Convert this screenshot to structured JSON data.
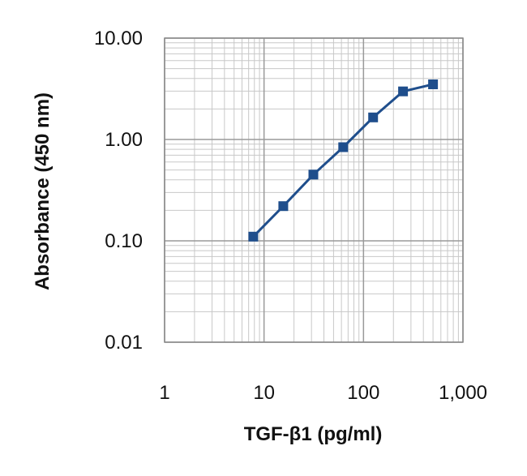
{
  "chart_data": {
    "type": "line",
    "title": "",
    "xlabel": "TGF-β1 (pg/ml)",
    "ylabel": "Absorbance (450 nm)",
    "xscale": "log",
    "yscale": "log",
    "xlim": [
      1,
      1000
    ],
    "ylim": [
      0.01,
      10
    ],
    "grid": true,
    "x_ticks": [
      1,
      10,
      100,
      1000
    ],
    "x_tick_labels": [
      "1",
      "10",
      "100",
      "1,000"
    ],
    "y_ticks": [
      0.01,
      0.1,
      1,
      10
    ],
    "y_tick_labels": [
      "0.01",
      "0.10",
      "1.00",
      "10.00"
    ],
    "series": [
      {
        "color": "#1f4e8c",
        "marker": "square",
        "x": [
          7.8,
          15.6,
          31.3,
          62.5,
          125,
          250,
          500
        ],
        "y": [
          0.11,
          0.22,
          0.45,
          0.84,
          1.65,
          2.98,
          3.5
        ]
      }
    ]
  }
}
